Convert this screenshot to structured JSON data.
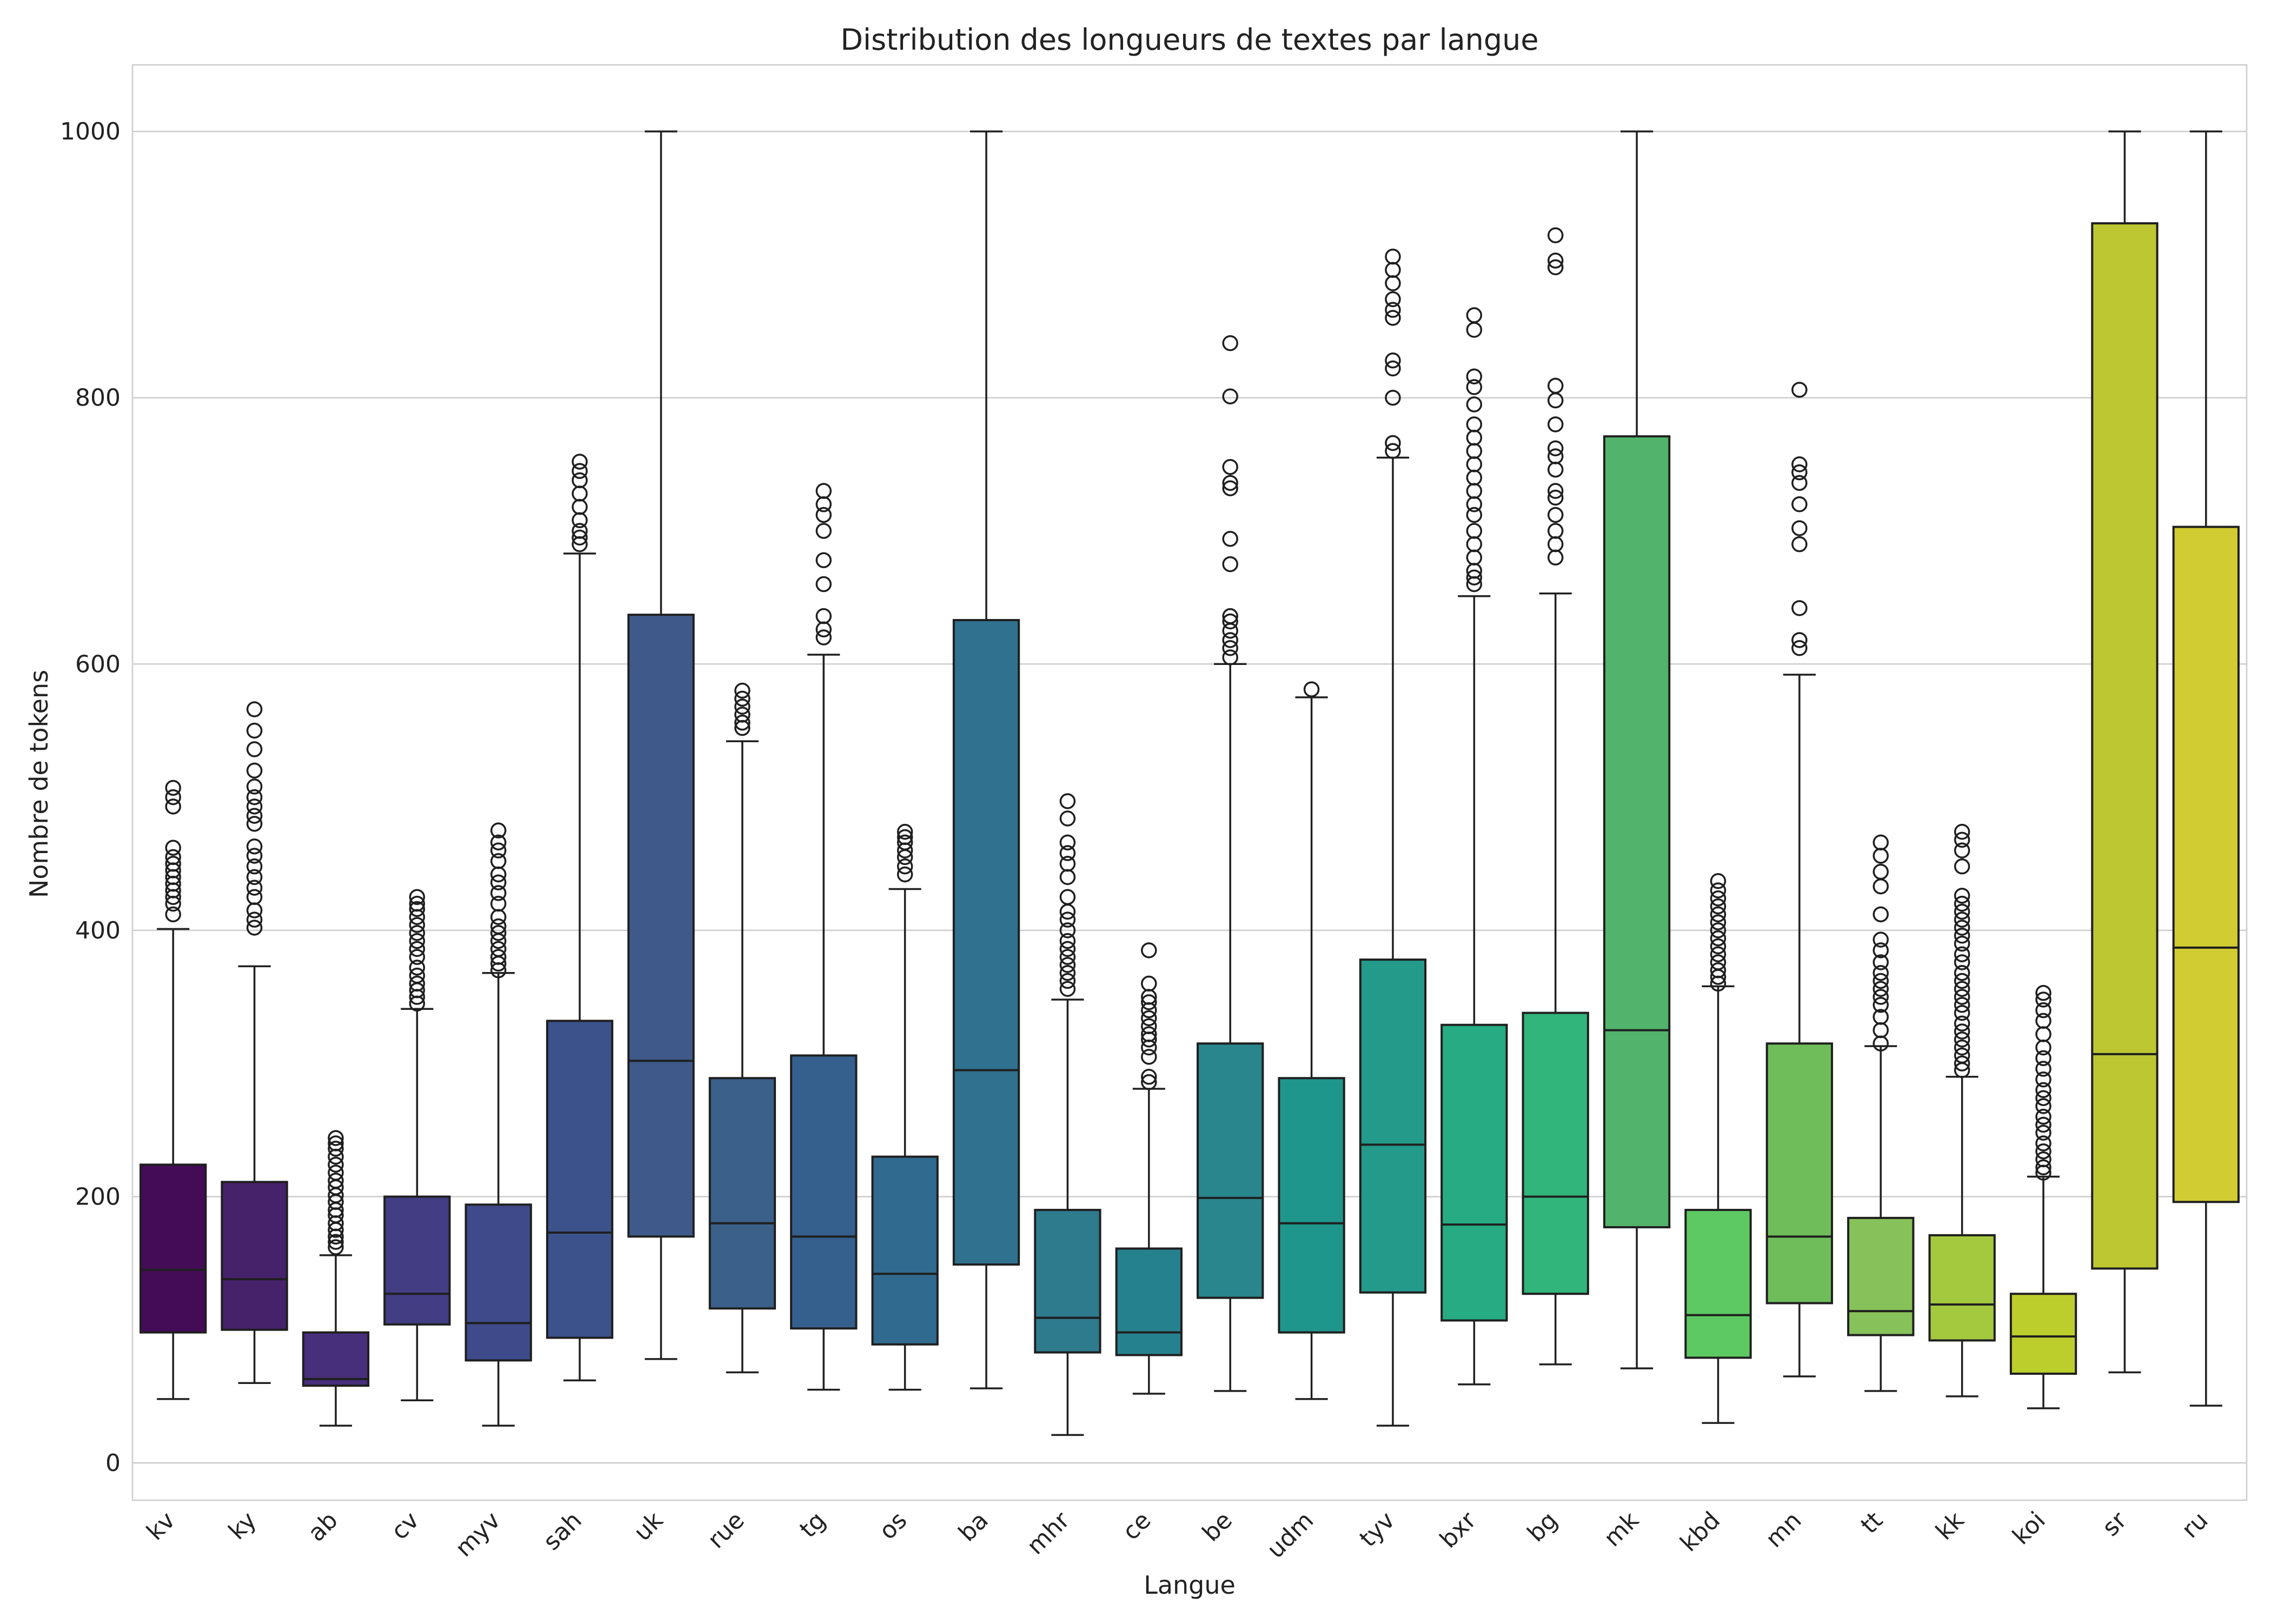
{
  "chart_data": {
    "type": "box",
    "title": "Distribution des longueurs de textes par langue",
    "xlabel": "Langue",
    "ylabel": "Nombre de tokens",
    "ylim": [
      -28,
      1050
    ],
    "yticks": [
      0,
      200,
      400,
      600,
      800,
      1000
    ],
    "grid": "horizontal",
    "palette": "viridis",
    "categories": [
      "kv",
      "ky",
      "ab",
      "cv",
      "myv",
      "sah",
      "uk",
      "rue",
      "tg",
      "os",
      "ba",
      "mhr",
      "ce",
      "be",
      "udm",
      "tyv",
      "bxr",
      "bg",
      "mk",
      "kbd",
      "mn",
      "tt",
      "kk",
      "koi",
      "sr",
      "ru"
    ],
    "colors": [
      "#440c57",
      "#46226b",
      "#472f7b",
      "#433d84",
      "#3e4a89",
      "#3b528b",
      "#3f5a8a",
      "#3b6089",
      "#355f8d",
      "#306a8e",
      "#2f718e",
      "#2e7b8e",
      "#26818e",
      "#29868d",
      "#1f968b",
      "#249a8a",
      "#27ab82",
      "#31b57b",
      "#52b36c",
      "#5dc963",
      "#6ebd5a",
      "#86c15a",
      "#a4c93f",
      "#bcce2c",
      "#bcc731",
      "#d0cc31"
    ],
    "boxes": [
      {
        "q1": 98,
        "median": 145,
        "q3": 224,
        "whisker_low": 48,
        "whisker_high": 401,
        "outliers": [
          412,
          420,
          425,
          430,
          435,
          440,
          445,
          450,
          455,
          462,
          493,
          500,
          507
        ]
      },
      {
        "q1": 100,
        "median": 138,
        "q3": 211,
        "whisker_low": 60,
        "whisker_high": 373,
        "outliers": [
          402,
          408,
          415,
          425,
          432,
          440,
          448,
          456,
          463,
          480,
          486,
          493,
          500,
          508,
          520,
          536,
          550,
          566
        ]
      },
      {
        "q1": 58,
        "median": 63,
        "q3": 98,
        "whisker_low": 28,
        "whisker_high": 156,
        "outliers": [
          162,
          166,
          170,
          175,
          180,
          186,
          190,
          196,
          201,
          207,
          212,
          218,
          224,
          230,
          236,
          240,
          244
        ]
      },
      {
        "q1": 104,
        "median": 127,
        "q3": 200,
        "whisker_low": 47,
        "whisker_high": 341,
        "outliers": [
          345,
          350,
          355,
          360,
          366,
          372,
          380,
          386,
          392,
          398,
          404,
          410,
          416,
          420,
          425
        ]
      },
      {
        "q1": 77,
        "median": 105,
        "q3": 194,
        "whisker_low": 28,
        "whisker_high": 368,
        "outliers": [
          370,
          375,
          380,
          386,
          392,
          398,
          403,
          410,
          420,
          428,
          436,
          442,
          452,
          460,
          466,
          475
        ]
      },
      {
        "q1": 94,
        "median": 173,
        "q3": 332,
        "whisker_low": 62,
        "whisker_high": 683,
        "outliers": [
          690,
          695,
          700,
          708,
          718,
          728,
          738,
          745,
          752
        ]
      },
      {
        "q1": 170,
        "median": 302,
        "q3": 637,
        "whisker_low": 78,
        "whisker_high": 1000,
        "outliers": []
      },
      {
        "q1": 116,
        "median": 180,
        "q3": 289,
        "whisker_low": 68,
        "whisker_high": 542,
        "outliers": [
          552,
          556,
          562,
          568,
          574,
          580
        ]
      },
      {
        "q1": 101,
        "median": 170,
        "q3": 306,
        "whisker_low": 55,
        "whisker_high": 607,
        "outliers": [
          620,
          626,
          636,
          660,
          678,
          700,
          712,
          720,
          730
        ]
      },
      {
        "q1": 89,
        "median": 142,
        "q3": 230,
        "whisker_low": 55,
        "whisker_high": 431,
        "outliers": [
          442,
          448,
          455,
          460,
          466,
          470,
          474
        ]
      },
      {
        "q1": 149,
        "median": 295,
        "q3": 633,
        "whisker_low": 56,
        "whisker_high": 1000,
        "outliers": []
      },
      {
        "q1": 83,
        "median": 109,
        "q3": 190,
        "whisker_low": 21,
        "whisker_high": 348,
        "outliers": [
          356,
          362,
          368,
          374,
          380,
          386,
          392,
          400,
          408,
          414,
          425,
          440,
          450,
          458,
          466,
          484,
          497
        ]
      },
      {
        "q1": 81,
        "median": 98,
        "q3": 161,
        "whisker_low": 52,
        "whisker_high": 281,
        "outliers": [
          286,
          290,
          305,
          312,
          318,
          322,
          328,
          334,
          340,
          346,
          350,
          360,
          385
        ]
      },
      {
        "q1": 124,
        "median": 199,
        "q3": 315,
        "whisker_low": 54,
        "whisker_high": 600,
        "outliers": [
          605,
          612,
          618,
          625,
          632,
          636,
          675,
          694,
          732,
          736,
          748,
          801,
          841
        ]
      },
      {
        "q1": 98,
        "median": 180,
        "q3": 289,
        "whisker_low": 48,
        "whisker_high": 575,
        "outliers": [
          581
        ]
      },
      {
        "q1": 128,
        "median": 239,
        "q3": 378,
        "whisker_low": 28,
        "whisker_high": 755,
        "outliers": [
          760,
          766,
          800,
          822,
          828,
          860,
          866,
          874,
          886,
          896,
          906
        ]
      },
      {
        "q1": 107,
        "median": 179,
        "q3": 329,
        "whisker_low": 59,
        "whisker_high": 651,
        "outliers": [
          660,
          665,
          670,
          680,
          690,
          700,
          712,
          720,
          730,
          740,
          750,
          760,
          770,
          780,
          795,
          808,
          816,
          851,
          862
        ]
      },
      {
        "q1": 127,
        "median": 200,
        "q3": 338,
        "whisker_low": 74,
        "whisker_high": 653,
        "outliers": [
          680,
          690,
          700,
          712,
          725,
          730,
          746,
          756,
          762,
          780,
          798,
          809,
          898,
          903,
          922
        ]
      },
      {
        "q1": 177,
        "median": 325,
        "q3": 771,
        "whisker_low": 71,
        "whisker_high": 1000,
        "outliers": []
      },
      {
        "q1": 79,
        "median": 111,
        "q3": 190,
        "whisker_low": 30,
        "whisker_high": 358,
        "outliers": [
          360,
          365,
          370,
          376,
          382,
          388,
          394,
          400,
          406,
          412,
          418,
          424,
          430,
          437
        ]
      },
      {
        "q1": 120,
        "median": 170,
        "q3": 315,
        "whisker_low": 65,
        "whisker_high": 592,
        "outliers": [
          612,
          618,
          642,
          690,
          702,
          720,
          736,
          744,
          750,
          806
        ]
      },
      {
        "q1": 96,
        "median": 114,
        "q3": 184,
        "whisker_low": 54,
        "whisker_high": 313,
        "outliers": [
          315,
          325,
          335,
          344,
          350,
          356,
          362,
          368,
          376,
          385,
          393,
          412,
          433,
          444,
          456,
          466
        ]
      },
      {
        "q1": 92,
        "median": 119,
        "q3": 171,
        "whisker_low": 50,
        "whisker_high": 290,
        "outliers": [
          295,
          300,
          306,
          312,
          318,
          324,
          330,
          338,
          344,
          350,
          356,
          362,
          368,
          376,
          382,
          390,
          396,
          402,
          408,
          414,
          420,
          426,
          448,
          460,
          468,
          474
        ]
      },
      {
        "q1": 67,
        "median": 95,
        "q3": 127,
        "whisker_low": 41,
        "whisker_high": 215,
        "outliers": [
          218,
          222,
          228,
          234,
          240,
          248,
          254,
          260,
          268,
          274,
          280,
          288,
          296,
          304,
          312,
          322,
          332,
          340,
          348,
          353
        ]
      },
      {
        "q1": 146,
        "median": 307,
        "q3": 931,
        "whisker_low": 68,
        "whisker_high": 1000,
        "outliers": []
      },
      {
        "q1": 196,
        "median": 387,
        "q3": 703,
        "whisker_low": 43,
        "whisker_high": 1000,
        "outliers": []
      }
    ]
  }
}
